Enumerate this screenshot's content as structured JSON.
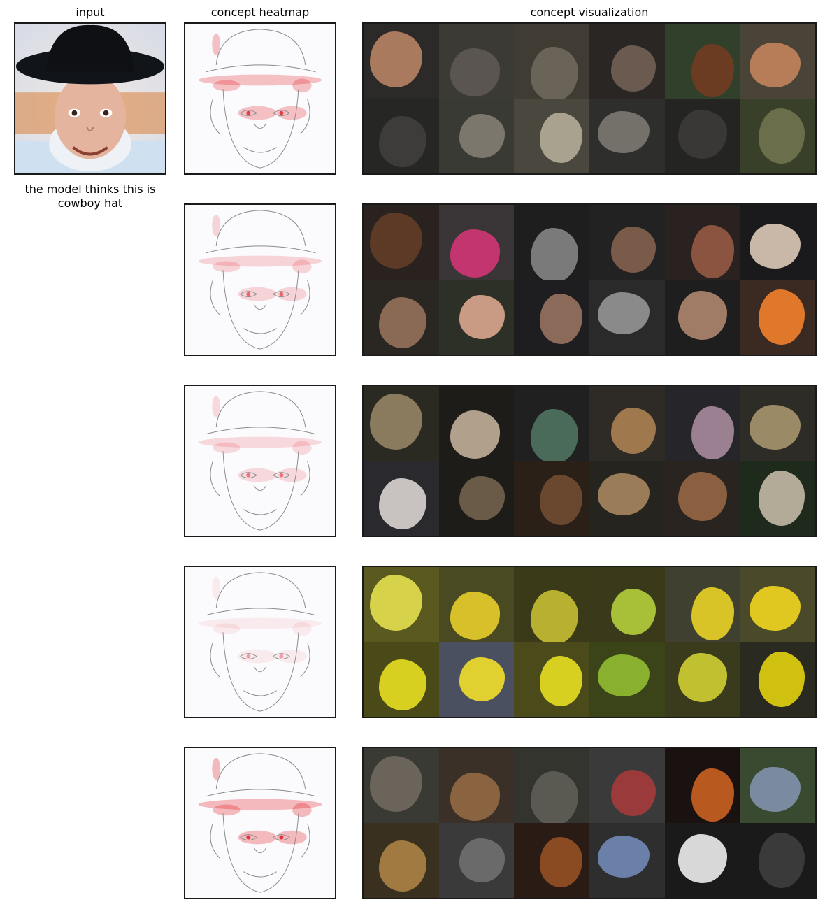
{
  "columns": {
    "input": "input",
    "heatmap": "concept heatmap",
    "visualization": "concept visualization"
  },
  "caption": "the model thinks this is cowboy hat",
  "colors": {
    "panel_border": "#1a1a1a",
    "heat_red": "#e0101a",
    "sketch_line": "#8a8a8a"
  },
  "concepts": [
    {
      "heat_intensity": 0.9,
      "tiles": [
        {
          "bg": "#2c2a28",
          "fg": "#a97a5e"
        },
        {
          "bg": "#3b3a34",
          "fg": "#5a5550"
        },
        {
          "bg": "#403c33",
          "fg": "#6a6458"
        },
        {
          "bg": "#2a2624",
          "fg": "#6a5a50"
        },
        {
          "bg": "#30402a",
          "fg": "#6b3c22"
        },
        {
          "bg": "#4a4438",
          "fg": "#b77d58"
        },
        {
          "bg": "#262624",
          "fg": "#3e3c3a"
        },
        {
          "bg": "#3a3a34",
          "fg": "#7b776c"
        },
        {
          "bg": "#4a483e",
          "fg": "#a8a28e"
        },
        {
          "bg": "#2e2e2c",
          "fg": "#74706a"
        },
        {
          "bg": "#242422",
          "fg": "#3a3836"
        },
        {
          "bg": "#38402a",
          "fg": "#6b6e4a"
        }
      ]
    },
    {
      "heat_intensity": 0.6,
      "tiles": [
        {
          "bg": "#2a221e",
          "fg": "#5c3a26"
        },
        {
          "bg": "#3a3638",
          "fg": "#c2356e"
        },
        {
          "bg": "#1e1e1e",
          "fg": "#7a7a7a"
        },
        {
          "bg": "#222222",
          "fg": "#7a5a48"
        },
        {
          "bg": "#2a2220",
          "fg": "#8a5440"
        },
        {
          "bg": "#1a1a1c",
          "fg": "#c9b8a8"
        },
        {
          "bg": "#2a2622",
          "fg": "#8a6a54"
        },
        {
          "bg": "#2c3026",
          "fg": "#c99a84"
        },
        {
          "bg": "#1e1e20",
          "fg": "#8c6a5a"
        },
        {
          "bg": "#2a2a2a",
          "fg": "#8a8a8a"
        },
        {
          "bg": "#1e1e1e",
          "fg": "#a07c66"
        },
        {
          "bg": "#3a2a22",
          "fg": "#e0782c"
        }
      ]
    },
    {
      "heat_intensity": 0.5,
      "tiles": [
        {
          "bg": "#2a2a22",
          "fg": "#8a7a5e"
        },
        {
          "bg": "#1e1c18",
          "fg": "#b0a08c"
        },
        {
          "bg": "#202020",
          "fg": "#4a6a5a"
        },
        {
          "bg": "#2e2a26",
          "fg": "#a0784e"
        },
        {
          "bg": "#26262a",
          "fg": "#9a8090"
        },
        {
          "bg": "#2e2c26",
          "fg": "#9a8a66"
        },
        {
          "bg": "#2a2a2e",
          "fg": "#c8c2c0"
        },
        {
          "bg": "#1e1c18",
          "fg": "#6a5a48"
        },
        {
          "bg": "#2a2018",
          "fg": "#6a4830"
        },
        {
          "bg": "#26241e",
          "fg": "#9a7c58"
        },
        {
          "bg": "#2a2420",
          "fg": "#8a6040"
        },
        {
          "bg": "#1e2a1c",
          "fg": "#b4aa98"
        }
      ]
    },
    {
      "heat_intensity": 0.25,
      "tiles": [
        {
          "bg": "#5a5a20",
          "fg": "#d6d24a"
        },
        {
          "bg": "#4a4a22",
          "fg": "#d8c02a"
        },
        {
          "bg": "#3a3a18",
          "fg": "#b8b030"
        },
        {
          "bg": "#3a3a1a",
          "fg": "#a8c038"
        },
        {
          "bg": "#404030",
          "fg": "#d8c426"
        },
        {
          "bg": "#4a4a2a",
          "fg": "#e0c820"
        },
        {
          "bg": "#4a4a18",
          "fg": "#d8d020"
        },
        {
          "bg": "#4a5060",
          "fg": "#e0d030"
        },
        {
          "bg": "#4a4a1a",
          "fg": "#d8d020"
        },
        {
          "bg": "#3a4418",
          "fg": "#8ab030"
        },
        {
          "bg": "#3a3a1c",
          "fg": "#c0c030"
        },
        {
          "bg": "#2a2a20",
          "fg": "#d0c010"
        }
      ]
    },
    {
      "heat_intensity": 1.0,
      "tiles": [
        {
          "bg": "#3a3a34",
          "fg": "#6a645a"
        },
        {
          "bg": "#3a3028",
          "fg": "#8a6440"
        },
        {
          "bg": "#34342e",
          "fg": "#5a5a52"
        },
        {
          "bg": "#3a3a3a",
          "fg": "#9a3a3a"
        },
        {
          "bg": "#1a1210",
          "fg": "#b85a20"
        },
        {
          "bg": "#3a4a30",
          "fg": "#7a8aa0"
        },
        {
          "bg": "#3a3020",
          "fg": "#a07a40"
        },
        {
          "bg": "#3a3a3a",
          "fg": "#6a6a6a"
        },
        {
          "bg": "#2a1c14",
          "fg": "#8a4a22"
        },
        {
          "bg": "#2e2e2e",
          "fg": "#6a80a8"
        },
        {
          "bg": "#1a1a1a",
          "fg": "#d8d8d8"
        },
        {
          "bg": "#1a1a1a",
          "fg": "#3a3a3a"
        }
      ]
    }
  ]
}
